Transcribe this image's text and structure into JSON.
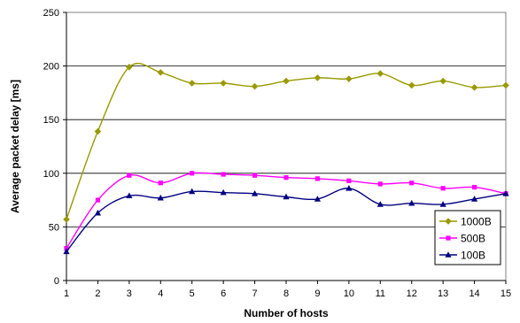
{
  "chart_data": {
    "type": "line",
    "title": "",
    "xlabel": "Number of hosts",
    "ylabel": "Average packet delay [ms]",
    "x": [
      1,
      2,
      3,
      4,
      5,
      6,
      7,
      8,
      9,
      10,
      11,
      12,
      13,
      14,
      15
    ],
    "xlim": [
      1,
      15
    ],
    "ylim": [
      0,
      250
    ],
    "yticks": [
      0,
      50,
      100,
      150,
      200,
      250
    ],
    "grid": "horizontal",
    "legend_position": "right",
    "series": [
      {
        "name": "1000B",
        "color": "#999900",
        "marker": "diamond",
        "values": [
          57,
          139,
          199,
          194,
          184,
          184,
          181,
          186,
          189,
          188,
          193,
          182,
          186,
          180,
          182
        ]
      },
      {
        "name": "500B",
        "color": "#ff00ff",
        "marker": "square",
        "values": [
          30,
          75,
          98,
          91,
          100,
          99,
          98,
          96,
          95,
          93,
          90,
          91,
          86,
          87,
          81
        ]
      },
      {
        "name": "100B",
        "color": "#000080",
        "marker": "triangle",
        "values": [
          27,
          63,
          79,
          77,
          83,
          82,
          81,
          78,
          76,
          86,
          71,
          72,
          71,
          76,
          81
        ]
      }
    ]
  }
}
